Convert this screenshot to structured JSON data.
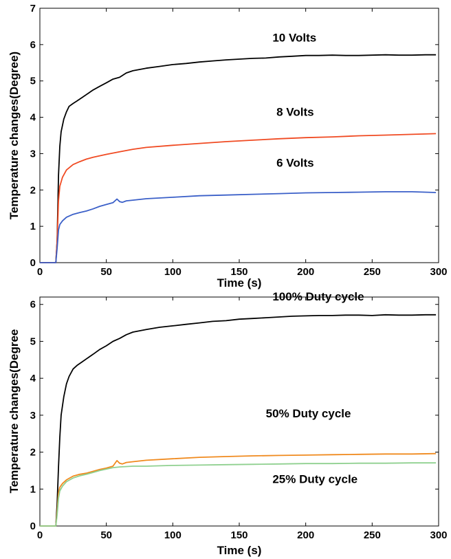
{
  "chart_data": [
    {
      "type": "line",
      "xlabel": "Time (s)",
      "ylabel": "Temperature changes(Degree)",
      "xlim": [
        0,
        300
      ],
      "ylim": [
        0,
        7
      ],
      "xticks": [
        "0",
        "50",
        "100",
        "150",
        "200",
        "250",
        "300"
      ],
      "yticks": [
        "0",
        "1",
        "2",
        "3",
        "4",
        "5",
        "6",
        "7"
      ],
      "grid": false,
      "annotations": [
        {
          "text": "10 Volts",
          "x": 175,
          "y": 6.2
        },
        {
          "text": "8 Volts",
          "x": 178,
          "y": 4.15
        },
        {
          "text": "6 Volts",
          "x": 178,
          "y": 2.75
        }
      ],
      "series": [
        {
          "label_ref": "10 Volts",
          "color": "#000000",
          "x": [
            0,
            12,
            13,
            14,
            15,
            16,
            18,
            20,
            22,
            25,
            28,
            32,
            36,
            40,
            45,
            50,
            55,
            60,
            65,
            70,
            80,
            90,
            100,
            110,
            120,
            130,
            140,
            150,
            160,
            170,
            180,
            190,
            200,
            210,
            220,
            230,
            240,
            250,
            260,
            270,
            280,
            290,
            298
          ],
          "y": [
            0,
            0,
            0.6,
            2.4,
            3.2,
            3.6,
            3.95,
            4.15,
            4.3,
            4.38,
            4.45,
            4.55,
            4.65,
            4.75,
            4.85,
            4.95,
            5.05,
            5.1,
            5.22,
            5.28,
            5.35,
            5.4,
            5.45,
            5.48,
            5.52,
            5.55,
            5.58,
            5.6,
            5.62,
            5.63,
            5.66,
            5.68,
            5.7,
            5.7,
            5.71,
            5.7,
            5.7,
            5.71,
            5.72,
            5.71,
            5.71,
            5.72,
            5.72
          ]
        },
        {
          "label_ref": "8 Volts",
          "color": "#f04a22",
          "x": [
            0,
            12,
            13,
            14,
            15,
            17,
            20,
            25,
            30,
            35,
            40,
            50,
            60,
            70,
            80,
            100,
            120,
            140,
            160,
            180,
            200,
            220,
            240,
            260,
            280,
            298
          ],
          "y": [
            0,
            0,
            0.6,
            1.7,
            2.1,
            2.35,
            2.55,
            2.7,
            2.78,
            2.85,
            2.9,
            2.98,
            3.05,
            3.12,
            3.17,
            3.23,
            3.28,
            3.33,
            3.37,
            3.41,
            3.44,
            3.46,
            3.49,
            3.51,
            3.53,
            3.55
          ]
        },
        {
          "label_ref": "6 Volts",
          "color": "#3a5fc8",
          "x": [
            0,
            12,
            13,
            14,
            15,
            17,
            20,
            25,
            30,
            35,
            40,
            45,
            50,
            55,
            58,
            60,
            62,
            65,
            70,
            80,
            100,
            120,
            140,
            160,
            180,
            200,
            220,
            240,
            260,
            280,
            298
          ],
          "y": [
            0,
            0,
            0.4,
            0.9,
            1.05,
            1.15,
            1.25,
            1.33,
            1.38,
            1.42,
            1.48,
            1.55,
            1.6,
            1.65,
            1.75,
            1.68,
            1.66,
            1.7,
            1.72,
            1.76,
            1.8,
            1.84,
            1.86,
            1.88,
            1.9,
            1.92,
            1.93,
            1.94,
            1.95,
            1.95,
            1.93
          ]
        }
      ]
    },
    {
      "type": "line",
      "xlabel": "Time (s)",
      "ylabel": "Temperature changes(Degree",
      "xlim": [
        0,
        300
      ],
      "ylim": [
        0,
        6.2
      ],
      "xticks": [
        "0",
        "50",
        "100",
        "150",
        "200",
        "250",
        "300"
      ],
      "yticks": [
        "0",
        "1",
        "2",
        "3",
        "4",
        "5",
        "6"
      ],
      "grid": false,
      "annotations": [
        {
          "text": "100% Duty cycle",
          "x": 175,
          "y": 6.22
        },
        {
          "text": "50% Duty cycle",
          "x": 170,
          "y": 3.05
        },
        {
          "text": "25% Duty cycle",
          "x": 175,
          "y": 1.28
        }
      ],
      "series": [
        {
          "label_ref": "100% Duty cycle",
          "color": "#000000",
          "x": [
            0,
            12,
            13,
            14,
            15,
            16,
            18,
            20,
            22,
            25,
            28,
            32,
            36,
            40,
            45,
            50,
            55,
            60,
            65,
            70,
            80,
            90,
            100,
            110,
            120,
            130,
            140,
            150,
            160,
            170,
            180,
            190,
            200,
            210,
            220,
            230,
            240,
            250,
            260,
            270,
            280,
            290,
            298
          ],
          "y": [
            0,
            0,
            0.6,
            1.6,
            2.4,
            3.0,
            3.5,
            3.85,
            4.05,
            4.25,
            4.35,
            4.45,
            4.55,
            4.65,
            4.78,
            4.88,
            5.0,
            5.08,
            5.18,
            5.25,
            5.32,
            5.38,
            5.42,
            5.46,
            5.5,
            5.54,
            5.56,
            5.6,
            5.62,
            5.64,
            5.66,
            5.68,
            5.69,
            5.7,
            5.7,
            5.71,
            5.71,
            5.7,
            5.72,
            5.71,
            5.71,
            5.72,
            5.72
          ]
        },
        {
          "label_ref": "50% Duty cycle",
          "color": "#f08a1e",
          "x": [
            0,
            12,
            13,
            14,
            15,
            17,
            20,
            25,
            30,
            35,
            40,
            45,
            50,
            55,
            58,
            60,
            62,
            65,
            70,
            80,
            100,
            120,
            140,
            160,
            180,
            200,
            220,
            240,
            260,
            280,
            298
          ],
          "y": [
            0,
            0,
            0.4,
            0.9,
            1.05,
            1.15,
            1.25,
            1.35,
            1.4,
            1.43,
            1.48,
            1.53,
            1.57,
            1.62,
            1.77,
            1.7,
            1.68,
            1.72,
            1.74,
            1.78,
            1.82,
            1.86,
            1.88,
            1.9,
            1.91,
            1.92,
            1.93,
            1.94,
            1.95,
            1.95,
            1.96
          ]
        },
        {
          "label_ref": "25% Duty cycle",
          "color": "#8fd08f",
          "x": [
            0,
            12,
            13,
            14,
            15,
            17,
            20,
            25,
            30,
            35,
            40,
            45,
            50,
            55,
            60,
            70,
            80,
            100,
            120,
            140,
            160,
            180,
            200,
            220,
            240,
            260,
            280,
            298
          ],
          "y": [
            0,
            0,
            0.3,
            0.75,
            0.95,
            1.08,
            1.2,
            1.3,
            1.36,
            1.4,
            1.45,
            1.5,
            1.54,
            1.58,
            1.6,
            1.62,
            1.62,
            1.64,
            1.65,
            1.66,
            1.67,
            1.68,
            1.69,
            1.69,
            1.7,
            1.7,
            1.71,
            1.71
          ]
        }
      ]
    }
  ]
}
